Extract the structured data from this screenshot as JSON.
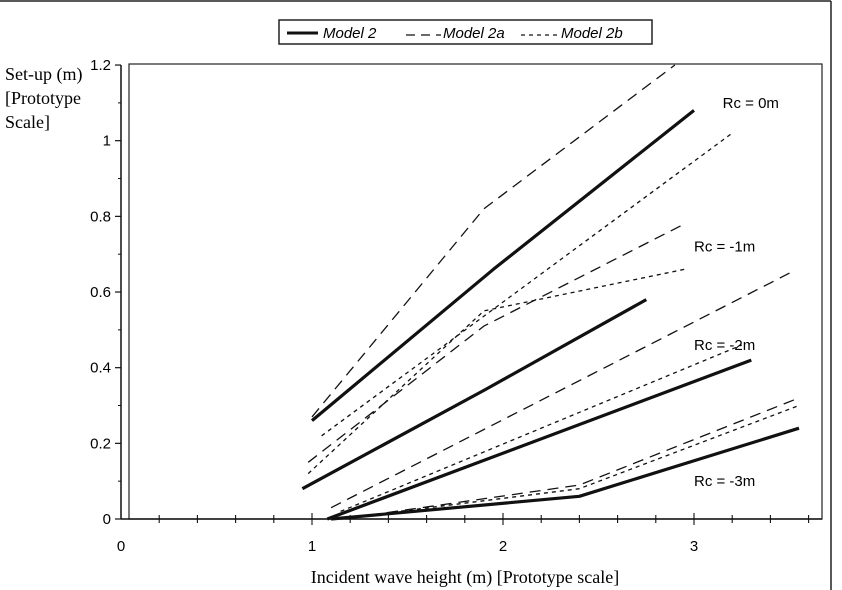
{
  "chart_data": {
    "type": "line",
    "title": "",
    "xlabel": "Incident wave height (m) [Prototype scale]",
    "ylabel": [
      "Set-up (m)",
      "[Prototype",
      "Scale]"
    ],
    "xlim": [
      0,
      3.6
    ],
    "ylim": [
      0,
      1.2
    ],
    "x_ticks": [
      "0",
      "1",
      "2",
      "3"
    ],
    "y_ticks": [
      "0",
      "0.2",
      "0.4",
      "0.6",
      "0.8",
      "1",
      "1.2"
    ],
    "legend": {
      "placement": "top",
      "entries": [
        {
          "label": "Model 2",
          "style": "solid"
        },
        {
          "label": "Model 2a",
          "style": "long-dash"
        },
        {
          "label": "Model 2b",
          "style": "short-dash"
        }
      ]
    },
    "annotations": [
      {
        "text": "Rc =  0m",
        "x": 3.15,
        "y": 1.1
      },
      {
        "text": "Rc = -1m",
        "x": 3.0,
        "y": 0.72
      },
      {
        "text": "Rc = -2m",
        "x": 3.0,
        "y": 0.46
      },
      {
        "text": "Rc = -3m",
        "x": 3.0,
        "y": 0.1
      }
    ],
    "series": [
      {
        "name": "Model 2",
        "group": "Rc = 0m",
        "style": "solid",
        "x": [
          1.0,
          1.95,
          3.0
        ],
        "y": [
          0.26,
          0.66,
          1.08
        ]
      },
      {
        "name": "Model 2a",
        "group": "Rc = 0m",
        "style": "long-dash",
        "x": [
          1.0,
          1.9,
          2.9
        ],
        "y": [
          0.27,
          0.82,
          1.2
        ]
      },
      {
        "name": "Model 2b",
        "group": "Rc = 0m",
        "style": "short-dash",
        "x": [
          1.05,
          3.2
        ],
        "y": [
          0.22,
          1.02
        ]
      },
      {
        "name": "Model 2",
        "group": "Rc = -1m",
        "style": "solid",
        "x": [
          0.95,
          1.9,
          2.75
        ],
        "y": [
          0.08,
          0.34,
          0.58
        ]
      },
      {
        "name": "Model 2a",
        "group": "Rc = -1m",
        "style": "long-dash",
        "x": [
          0.98,
          1.9,
          2.95
        ],
        "y": [
          0.15,
          0.51,
          0.78
        ]
      },
      {
        "name": "Model 2b",
        "group": "Rc = -1m",
        "style": "short-dash",
        "x": [
          0.98,
          1.9,
          2.95
        ],
        "y": [
          0.12,
          0.55,
          0.66
        ]
      },
      {
        "name": "Model 2",
        "group": "Rc = -2m",
        "style": "solid",
        "x": [
          1.08,
          3.3
        ],
        "y": [
          0.0,
          0.42
        ]
      },
      {
        "name": "Model 2a",
        "group": "Rc = -2m",
        "style": "long-dash",
        "x": [
          1.1,
          3.5
        ],
        "y": [
          0.03,
          0.65
        ]
      },
      {
        "name": "Model 2b",
        "group": "Rc = -2m",
        "style": "short-dash",
        "x": [
          1.15,
          3.25
        ],
        "y": [
          0.02,
          0.46
        ]
      },
      {
        "name": "Model 2",
        "group": "Rc = -3m",
        "style": "solid",
        "x": [
          1.1,
          2.4,
          3.55
        ],
        "y": [
          0.0,
          0.06,
          0.24
        ]
      },
      {
        "name": "Model 2a",
        "group": "Rc = -3m",
        "style": "long-dash",
        "x": [
          1.3,
          2.4,
          3.55
        ],
        "y": [
          0.01,
          0.09,
          0.32
        ]
      },
      {
        "name": "Model 2b",
        "group": "Rc = -3m",
        "style": "short-dash",
        "x": [
          1.3,
          2.4,
          3.55
        ],
        "y": [
          0.01,
          0.08,
          0.3
        ]
      }
    ],
    "grid": false
  }
}
